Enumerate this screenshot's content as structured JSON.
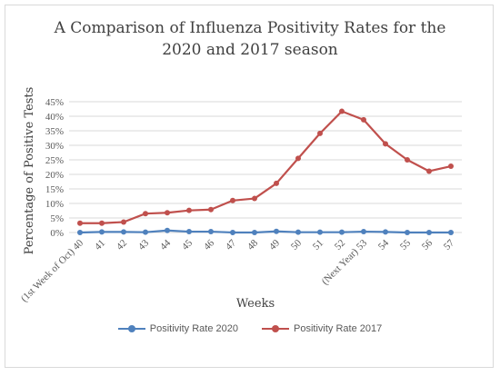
{
  "chart_data": {
    "type": "line",
    "title_line1": "A Comparison of Influenza Positivity Rates for the",
    "title_line2": "2020 and 2017 season",
    "xlabel": "Weeks",
    "ylabel": "Percentage  of Positive Tests",
    "categories": [
      "(1st Week of Oct) 40",
      "41",
      "42",
      "43",
      "44",
      "45",
      "46",
      "47",
      "48",
      "49",
      "50",
      "51",
      "52",
      "(Next Year) 53",
      "54",
      "55",
      "56",
      "57"
    ],
    "yticks": [
      "0%",
      "5%",
      "10%",
      "15%",
      "20%",
      "25%",
      "30%",
      "35%",
      "40%",
      "45%"
    ],
    "ylim": [
      0,
      45
    ],
    "grid": true,
    "legend_position": "bottom",
    "series": [
      {
        "name": "Positivity Rate 2020",
        "color": "#4f81bd",
        "values": [
          0.0,
          0.2,
          0.2,
          0.1,
          0.7,
          0.3,
          0.3,
          0.0,
          0.0,
          0.4,
          0.1,
          0.1,
          0.1,
          0.3,
          0.2,
          0.0,
          0.0,
          0.0
        ]
      },
      {
        "name": "Positivity Rate 2017",
        "color": "#c0504d",
        "values": [
          3.2,
          3.2,
          3.6,
          6.5,
          6.8,
          7.6,
          7.9,
          11.0,
          11.7,
          16.9,
          25.5,
          34.1,
          41.7,
          38.8,
          30.5,
          25.0,
          21.1,
          22.8
        ]
      }
    ]
  }
}
